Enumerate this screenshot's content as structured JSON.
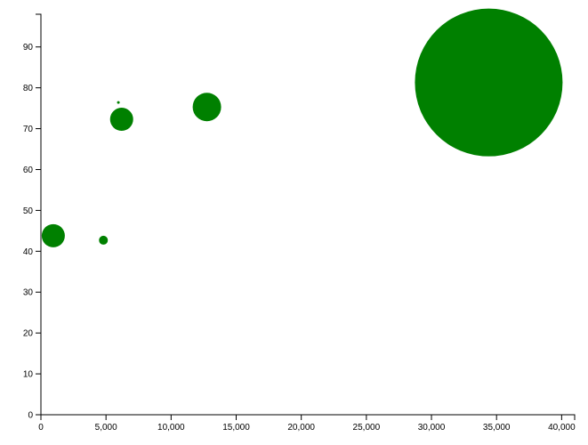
{
  "chart_data": {
    "type": "scatter",
    "title": "",
    "xlabel": "",
    "ylabel": "",
    "xlim": [
      0,
      41000
    ],
    "ylim": [
      0,
      98
    ],
    "x_ticks": [
      0,
      5000,
      10000,
      15000,
      20000,
      25000,
      30000,
      35000,
      40000
    ],
    "x_tick_labels": [
      "0",
      "5,000",
      "10,000",
      "15,000",
      "20,000",
      "25,000",
      "30,000",
      "35,000",
      "40,000"
    ],
    "y_ticks": [
      0,
      10,
      20,
      30,
      40,
      50,
      60,
      70,
      80,
      90
    ],
    "y_tick_labels": [
      "0",
      "10",
      "20",
      "30",
      "40",
      "50",
      "60",
      "70",
      "80",
      "90"
    ],
    "grid": false,
    "marker_color": "#008000",
    "series": [
      {
        "points": [
          {
            "x": 950,
            "y": 43.8,
            "size": 13
          },
          {
            "x": 4800,
            "y": 42.7,
            "size": 5
          },
          {
            "x": 5950,
            "y": 76.4,
            "size": 1.5
          },
          {
            "x": 6200,
            "y": 72.3,
            "size": 13
          },
          {
            "x": 12750,
            "y": 75.3,
            "size": 16
          },
          {
            "x": 34400,
            "y": 81.3,
            "size": 83
          }
        ]
      }
    ]
  }
}
